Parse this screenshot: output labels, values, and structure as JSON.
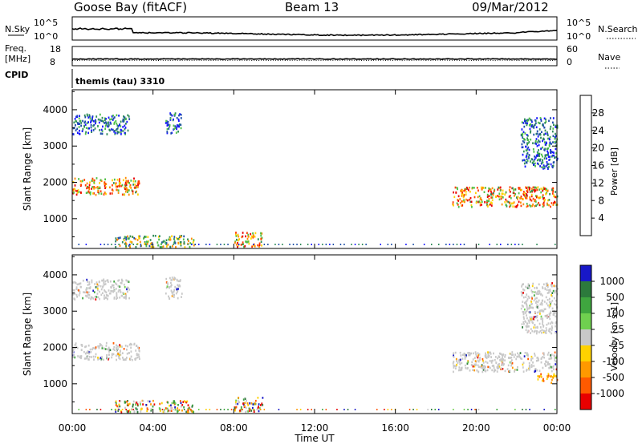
{
  "header": {
    "station": "Goose Bay (fitACF)",
    "beam": "Beam 13",
    "date": "09/Mar/2012"
  },
  "top_panels": {
    "nsky_label": "N.Sky",
    "nsky_ticks": [
      "10^5",
      "10^0"
    ],
    "nsearch_label": "N.Search",
    "nsearch_ticks": [
      "10^5",
      "10^0"
    ],
    "freq_label": "Freq.",
    "freq_unit": "[MHz]",
    "freq_ticks": [
      "18",
      "8"
    ],
    "nave_label": "Nave",
    "nave_ticks": [
      "60",
      "0"
    ],
    "cpid_label": "CPID",
    "cpid_value": "themis (tau) 3310"
  },
  "chart_data": [
    {
      "type": "heatmap",
      "panel": "power",
      "ylabel": "Slant Range [km]",
      "xlabel": "",
      "x_ticks": [
        "00:00",
        "04:00",
        "08:00",
        "12:00",
        "16:00",
        "20:00",
        "00:00"
      ],
      "xlim_hours": [
        0,
        24
      ],
      "y_ticks": [
        1000,
        2000,
        3000,
        4000
      ],
      "ylim": [
        180,
        4550
      ],
      "colorbar": {
        "label": "Power [dB]",
        "ticks": [
          "4",
          "8",
          "12",
          "16",
          "20",
          "24",
          "28"
        ],
        "colors": [
          "#1515ff",
          "#1e4fa8",
          "#2e8b57",
          "#4dc046",
          "#ffd200",
          "#ff8a00",
          "#ff3d00",
          "#e80000"
        ]
      },
      "regions": [
        {
          "t0": 0.0,
          "t1": 3.3,
          "r0": 1680,
          "r1": 2150,
          "level": "high"
        },
        {
          "t0": 0.0,
          "t1": 2.8,
          "r0": 3350,
          "r1": 3900,
          "level": "low"
        },
        {
          "t0": 4.6,
          "t1": 5.4,
          "r0": 3350,
          "r1": 3950,
          "level": "low"
        },
        {
          "t0": 2.1,
          "t1": 6.0,
          "r0": 240,
          "r1": 560,
          "level": "mid"
        },
        {
          "t0": 8.0,
          "t1": 9.4,
          "r0": 250,
          "r1": 650,
          "level": "high"
        },
        {
          "t0": 18.8,
          "t1": 24.0,
          "r0": 1350,
          "r1": 1900,
          "level": "high"
        },
        {
          "t0": 22.2,
          "t1": 24.0,
          "r0": 2400,
          "r1": 3800,
          "level": "low"
        }
      ]
    },
    {
      "type": "heatmap",
      "panel": "velocity",
      "ylabel": "Slant Range [km]",
      "xlabel": "Time UT",
      "x_ticks": [
        "00:00",
        "04:00",
        "08:00",
        "12:00",
        "16:00",
        "20:00",
        "00:00"
      ],
      "xlim_hours": [
        0,
        24
      ],
      "y_ticks": [
        1000,
        2000,
        3000,
        4000
      ],
      "ylim": [
        180,
        4550
      ],
      "colorbar": {
        "label": "Velocity [m s-1]",
        "ticks": [
          "1000",
          "500",
          "100",
          "25",
          "-25",
          "-100",
          "-500",
          "-1000"
        ],
        "colors": [
          "#1818c8",
          "#2c7a3c",
          "#3fa63f",
          "#6fd04f",
          "#c8c8c8",
          "#ffd200",
          "#ff9900",
          "#ff5a00",
          "#e80000"
        ]
      },
      "regions": [
        {
          "t0": 0.0,
          "t1": 3.3,
          "r0": 1680,
          "r1": 2150,
          "level": "ground"
        },
        {
          "t0": 0.0,
          "t1": 2.8,
          "r0": 3350,
          "r1": 3900,
          "level": "ground"
        },
        {
          "t0": 4.6,
          "t1": 5.4,
          "r0": 3350,
          "r1": 3950,
          "level": "ground"
        },
        {
          "t0": 2.1,
          "t1": 6.0,
          "r0": 240,
          "r1": 560,
          "level": "mixed"
        },
        {
          "t0": 8.0,
          "t1": 9.4,
          "r0": 250,
          "r1": 650,
          "level": "mixed"
        },
        {
          "t0": 18.8,
          "t1": 24.0,
          "r0": 1350,
          "r1": 1900,
          "level": "ground"
        },
        {
          "t0": 22.2,
          "t1": 24.0,
          "r0": 2400,
          "r1": 3800,
          "level": "ground"
        },
        {
          "t0": 23.0,
          "t1": 24.0,
          "r0": 1050,
          "r1": 1300,
          "level": "negative"
        }
      ]
    }
  ]
}
